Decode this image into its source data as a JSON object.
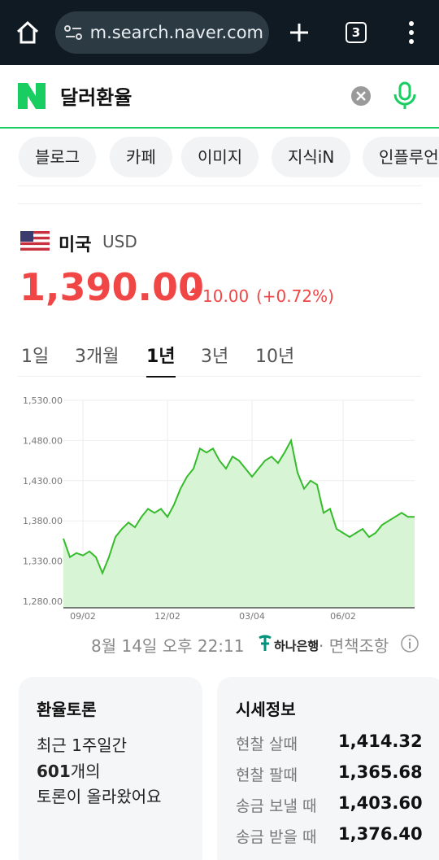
{
  "browser": {
    "url": "m.search.naver.com",
    "tab_count": "3"
  },
  "search": {
    "query": "달러환율"
  },
  "tabs": [
    "블로그",
    "카페",
    "이미지",
    "지식iN",
    "인플루언서"
  ],
  "currency": {
    "country": "미국",
    "code": "USD",
    "rate": "1,390.00",
    "change": "10.00",
    "change_pct": "(+0.72%)"
  },
  "periods": [
    "1일",
    "3개월",
    "1년",
    "3년",
    "10년"
  ],
  "chart_data": {
    "type": "line",
    "color": "#35bb2b",
    "fill": "#d7f4d4",
    "grid": true,
    "categories": [
      null,
      null,
      null,
      "09/02",
      null,
      null,
      null,
      null,
      null,
      null,
      null,
      null,
      null,
      null,
      null,
      null,
      "12/02",
      null,
      null,
      null,
      null,
      null,
      null,
      null,
      null,
      null,
      null,
      null,
      null,
      "03/04",
      null,
      null,
      null,
      null,
      null,
      null,
      null,
      null,
      null,
      null,
      null,
      null,
      null,
      "06/02",
      null,
      null,
      null,
      null,
      null,
      null,
      null,
      null,
      null,
      null,
      null
    ],
    "values": [
      1358,
      1335,
      1340,
      1337,
      1342,
      1335,
      1315,
      1335,
      1360,
      1370,
      1378,
      1372,
      1385,
      1395,
      1390,
      1395,
      1385,
      1400,
      1420,
      1435,
      1445,
      1470,
      1465,
      1470,
      1455,
      1445,
      1460,
      1455,
      1445,
      1435,
      1445,
      1455,
      1460,
      1452,
      1465,
      1480,
      1440,
      1420,
      1430,
      1425,
      1390,
      1395,
      1370,
      1365,
      1360,
      1365,
      1370,
      1360,
      1365,
      1375,
      1380,
      1385,
      1390,
      1385,
      1385
    ],
    "ylim": [
      1280,
      1530
    ],
    "yticks": [
      {
        "value": 1280,
        "label": "1,280.00"
      },
      {
        "value": 1330,
        "label": "1,330.00"
      },
      {
        "value": 1380,
        "label": "1,380.00"
      },
      {
        "value": 1430,
        "label": "1,430.00"
      },
      {
        "value": 1480,
        "label": "1,480.00"
      },
      {
        "value": 1530,
        "label": "1,530.00"
      }
    ]
  },
  "source": {
    "timestamp": "8월 14일 오후 22:11",
    "bank": "하나은행",
    "disclaimer": "· 면책조항"
  },
  "discussion": {
    "title": "환율토론",
    "line1": "최근 1주일간",
    "count": "601",
    "count_suffix": "개의",
    "line3": "토론이 올라왔어요"
  },
  "market": {
    "title": "시세정보",
    "rows": [
      [
        "현찰 살때",
        "1,414.32"
      ],
      [
        "현찰 팔때",
        "1,365.68"
      ],
      [
        "송금 보낼 때",
        "1,403.60"
      ],
      [
        "송금 받을 때",
        "1,376.40"
      ]
    ]
  }
}
